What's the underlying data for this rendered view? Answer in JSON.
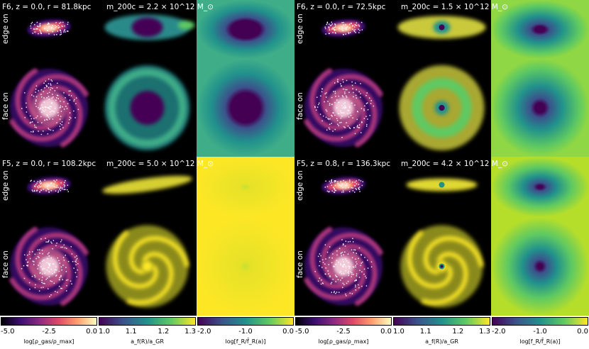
{
  "galaxies": [
    {
      "id": "g1",
      "header": "F6, z = 0.0, r = 81.8kpc",
      "mass": "m_200c = 2.2 × 10^12 M_⊙",
      "edge_label": "edge on",
      "face_label": "face on",
      "gas": "spiral",
      "ratio": "ring_green",
      "ratio_edge": "disk_green",
      "fr": "big_purple"
    },
    {
      "id": "g2",
      "header": "F6, z = 0.0, r = 72.5kpc",
      "mass": "m_200c = 1.5 × 10^12 M_⊙",
      "edge_label": "edge on",
      "face_label": "face on",
      "gas": "spiral",
      "ratio": "ring_yellow",
      "ratio_edge": "disk_yellow",
      "fr": "small_purple"
    },
    {
      "id": "g3",
      "header": "F5, z = 0.0, r = 108.2kpc",
      "mass": "m_200c = 5.0 × 10^12 M_⊙",
      "edge_label": "edge on",
      "face_label": "face on",
      "gas": "spiral",
      "ratio": "spiral_yellow",
      "ratio_edge": "streak_yellow",
      "fr": "flat_yellow"
    },
    {
      "id": "g4",
      "header": "F5, z = 0.8, r = 136.3kpc",
      "mass": "m_200c = 4.2 × 10^12 M_⊙",
      "edge_label": "edge on",
      "face_label": "face on",
      "gas": "spiral",
      "ratio": "spiral_yellow_dot",
      "ratio_edge": "streak_yellow_dot",
      "fr": "tiny_purple"
    }
  ],
  "colorbars": [
    {
      "id": "gas",
      "min": "-5.0",
      "mid": "-2.5",
      "max": "0.0",
      "label": "log[ρ_gas/ρ_max]",
      "palette": "magma"
    },
    {
      "id": "ratio",
      "min": "1.0",
      "t2": "1.1",
      "t3": "1.2",
      "max": "1.3",
      "label": "a_f(R)/a_GR",
      "palette": "viridis"
    },
    {
      "id": "fr",
      "min": "-2.0",
      "mid": "-1.0",
      "max": "0.0",
      "label": "log[f_R/f̄_R(a)]",
      "palette": "viridis"
    },
    {
      "id": "gas2",
      "min": "-5.0",
      "mid": "-2.5",
      "max": "0.0",
      "label": "log[ρ_gas/ρ_max]",
      "palette": "magma"
    },
    {
      "id": "ratio2",
      "min": "1.0",
      "t2": "1.1",
      "t3": "1.2",
      "max": "1.3",
      "label": "a_f(R)/a_GR",
      "palette": "viridis"
    },
    {
      "id": "fr2",
      "min": "-2.0",
      "mid": "-1.0",
      "max": "0.0",
      "label": "log[f_R/f̄_R(a)]",
      "palette": "viridis"
    }
  ],
  "colors": {
    "magma": [
      "#000004",
      "#3b0f70",
      "#8c2981",
      "#de4968",
      "#fe9f6d",
      "#fcfdbf"
    ],
    "viridis": [
      "#440154",
      "#3b528b",
      "#21918c",
      "#5ec962",
      "#fde725"
    ]
  }
}
